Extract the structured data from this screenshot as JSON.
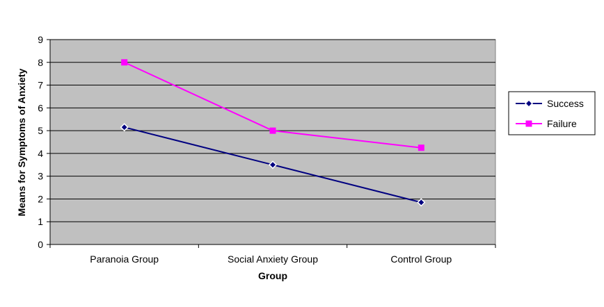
{
  "chart_data": {
    "type": "line",
    "title": "",
    "xlabel": "Group",
    "ylabel": "Means for Symptoms of Anxiety",
    "categories": [
      "Paranoia Group",
      "Social Anxiety Group",
      "Control Group"
    ],
    "ylim": [
      0,
      9
    ],
    "yticks": [
      0,
      1,
      2,
      3,
      4,
      5,
      6,
      7,
      8,
      9
    ],
    "grid": true,
    "legend_position": "right",
    "series": [
      {
        "name": "Success",
        "values": [
          5.15,
          3.5,
          1.85
        ],
        "color": "#000080",
        "marker": "diamond"
      },
      {
        "name": "Failure",
        "values": [
          8.0,
          5.0,
          4.25
        ],
        "color": "#ff00ff",
        "marker": "square"
      }
    ],
    "plot_background": "#c0c0c0"
  }
}
